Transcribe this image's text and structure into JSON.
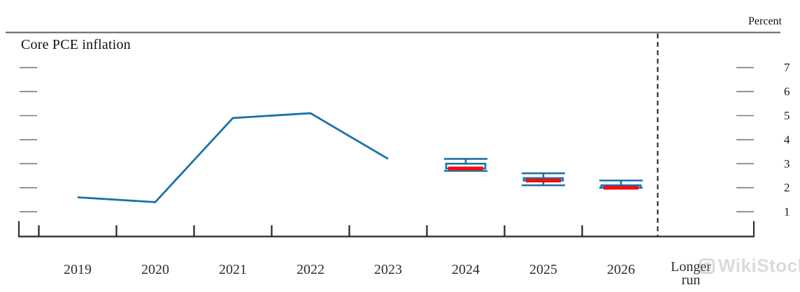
{
  "title": "Core PCE inflation",
  "axis": {
    "unit_label": "Percent",
    "y_tick_labels": [
      "1",
      "2",
      "3",
      "4",
      "5",
      "6",
      "7"
    ],
    "x_tick_labels": [
      "2019",
      "2020",
      "2021",
      "2022",
      "2023",
      "2024",
      "2025",
      "2026"
    ],
    "longer_run_line1": "Longer",
    "longer_run_line2": "run"
  },
  "watermark": {
    "text": "WikiStock",
    "icon": "camera-logo-icon"
  },
  "chart_data": {
    "type": "line",
    "title": "Core PCE inflation",
    "ylabel": "Percent",
    "ylim": [
      0,
      7.7
    ],
    "y_ticks": [
      1,
      2,
      3,
      4,
      5,
      6,
      7
    ],
    "grid": false,
    "legend": null,
    "x_categories": [
      "2019",
      "2020",
      "2021",
      "2022",
      "2023",
      "2024",
      "2025",
      "2026",
      "Longer run"
    ],
    "historical_line": {
      "x": [
        "2019",
        "2020",
        "2021",
        "2022",
        "2023"
      ],
      "values": [
        1.6,
        1.4,
        4.9,
        5.1,
        3.2
      ]
    },
    "projection_markers": [
      {
        "x": "2024",
        "median": 2.8,
        "central_tendency": [
          2.8,
          3.0
        ],
        "full_range": [
          2.7,
          3.2
        ]
      },
      {
        "x": "2025",
        "median": 2.3,
        "central_tendency": [
          2.3,
          2.4
        ],
        "full_range": [
          2.1,
          2.6
        ]
      },
      {
        "x": "2026",
        "median": 2.0,
        "central_tendency": [
          2.0,
          2.1
        ],
        "full_range": [
          2.0,
          2.3
        ]
      }
    ],
    "longer_run_values": null,
    "separator_note": "dashed vertical line before empty Longer run column",
    "colors": {
      "historical_line": "#1872a8",
      "range_whisker": "#1872a8",
      "central_tendency_box": "#1872a8",
      "median_bar": "#ee1111",
      "axis": "#303030",
      "tick_dash": "#7a7a7a"
    }
  }
}
